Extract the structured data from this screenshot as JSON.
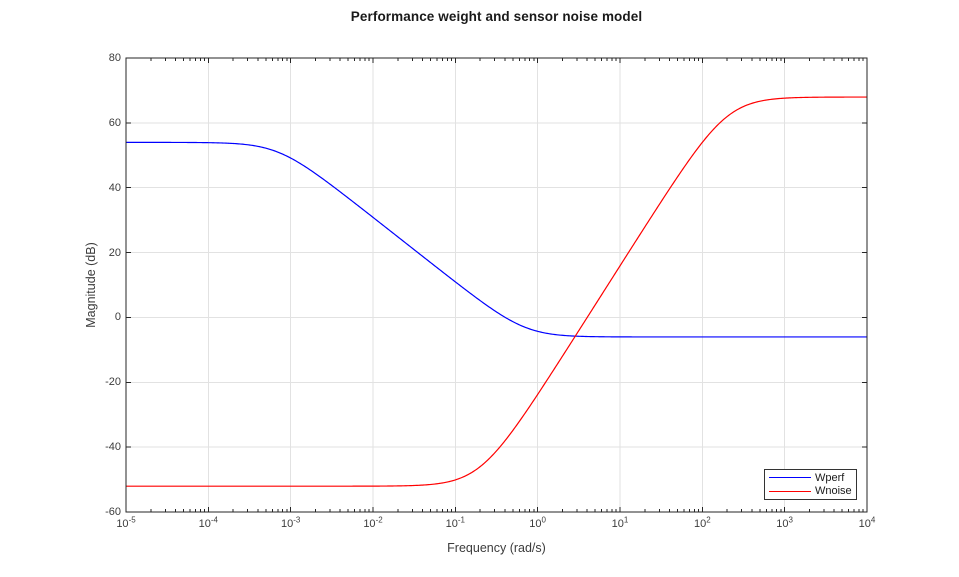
{
  "figure": {
    "background": "#ffffff"
  },
  "chart_data": {
    "type": "line",
    "title": "Performance weight and sensor noise model",
    "xlabel": "Frequency (rad/s)",
    "ylabel": "Magnitude (dB)",
    "x_scale": "log",
    "xlim_exponents": [
      -5,
      4
    ],
    "ylim": [
      -60,
      80
    ],
    "yticks": [
      -60,
      -40,
      -20,
      0,
      20,
      40,
      60,
      80
    ],
    "xtick_exponents": [
      -5,
      -4,
      -3,
      -2,
      -1,
      0,
      1,
      2,
      3,
      4
    ],
    "grid": true,
    "legend": {
      "position": "southeast"
    },
    "series": [
      {
        "name": "Wperf",
        "color": "#0000ff",
        "model": {
          "form": "biproper-tf",
          "order": 1,
          "dc_gain_db": 53.98,
          "hf_gain_db": -6.02,
          "zero_rad_s": 0.7,
          "pole_rad_s": 0.0007
        },
        "points_w_db": [
          [
            1e-05,
            53.98
          ],
          [
            0.0001,
            53.89
          ],
          [
            0.001,
            49.15
          ],
          [
            0.01,
            30.86
          ],
          [
            0.1,
            10.97
          ],
          [
            0.316,
            1.69
          ],
          [
            1,
            -4.29
          ],
          [
            3.16,
            -5.82
          ],
          [
            10,
            -5.98
          ],
          [
            100,
            -6.02
          ],
          [
            1000,
            -6.02
          ],
          [
            10000,
            -6.02
          ]
        ]
      },
      {
        "name": "Wnoise",
        "color": "#ff0000",
        "model": {
          "form": "biproper-tf",
          "order": 2,
          "dc_gain_db": -52.04,
          "hf_gain_db": 67.96,
          "zero_rad_s": 0.2,
          "pole_rad_s": 200
        },
        "points_w_db": [
          [
            1e-05,
            -52.04
          ],
          [
            0.001,
            -52.04
          ],
          [
            0.01,
            -52.03
          ],
          [
            0.1,
            -51.07
          ],
          [
            0.2,
            -49.03
          ],
          [
            0.316,
            -41.17
          ],
          [
            1,
            -23.72
          ],
          [
            3.16,
            -4.06
          ],
          [
            10,
            15.9
          ],
          [
            31.6,
            35.71
          ],
          [
            100,
            53.98
          ],
          [
            316,
            65.03
          ],
          [
            1000,
            67.62
          ],
          [
            10000,
            67.96
          ]
        ]
      }
    ]
  },
  "colors": {
    "axis": "#262626",
    "grid": "#e2e2e2",
    "tick_text": "#3c3c3c",
    "title_text": "#1a1a1a",
    "legend_border": "#333333",
    "legend_bg": "#ffffff"
  }
}
